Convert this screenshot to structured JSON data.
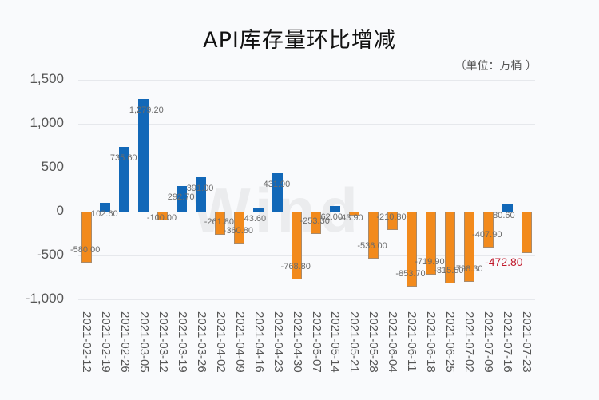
{
  "title": "API库存量环比增减",
  "unit": "（单位：万桶 ）",
  "watermark": "Wind",
  "colors": {
    "positive": "#1268b8",
    "negative": "#f28a1c",
    "highlight_label": "#c0182a"
  },
  "y_ticks": [
    "1,500",
    "1,000",
    "500",
    "0",
    "-500",
    "-1,000"
  ],
  "chart_data": {
    "type": "bar",
    "title": "API库存量环比增减",
    "subtitle": "（单位：万桶 ）",
    "xlabel": "",
    "ylabel": "",
    "ylim": [
      -1000,
      1500
    ],
    "grid": true,
    "legend": "none",
    "categories": [
      "2021-02-12",
      "2021-02-19",
      "2021-02-26",
      "2021-03-05",
      "2021-03-12",
      "2021-03-19",
      "2021-03-26",
      "2021-04-02",
      "2021-04-09",
      "2021-04-16",
      "2021-04-23",
      "2021-04-30",
      "2021-05-07",
      "2021-05-14",
      "2021-05-21",
      "2021-05-28",
      "2021-06-04",
      "2021-06-11",
      "2021-06-18",
      "2021-06-25",
      "2021-07-02",
      "2021-07-09",
      "2021-07-16",
      "2021-07-23"
    ],
    "values": [
      -580.0,
      102.6,
      735.6,
      1279.2,
      -100.0,
      292.7,
      391.0,
      -261.8,
      -360.8,
      43.6,
      431.9,
      -768.8,
      -253.3,
      62.0,
      -43.9,
      -536.0,
      -210.8,
      -853.7,
      -719.9,
      -815.5,
      -798.3,
      -407.9,
      80.6,
      -472.8
    ],
    "labels": [
      "-580.00",
      "102.60",
      "735.60",
      "1,279.20",
      "-100.00",
      "292.70",
      "391.00",
      "-261.80",
      "-360.80",
      "43.60",
      "431.90",
      "-768.80",
      "-253.30",
      "62.00",
      "-43.90",
      "-536.00",
      "-210.80",
      "-853.70",
      "-719.90",
      "-815.50",
      "-798.30",
      "-407.90",
      "80.60",
      "-472.80"
    ],
    "annotations": [
      {
        "category": "2021-07-23",
        "text": "-472.80",
        "color": "#c0182a"
      }
    ]
  }
}
